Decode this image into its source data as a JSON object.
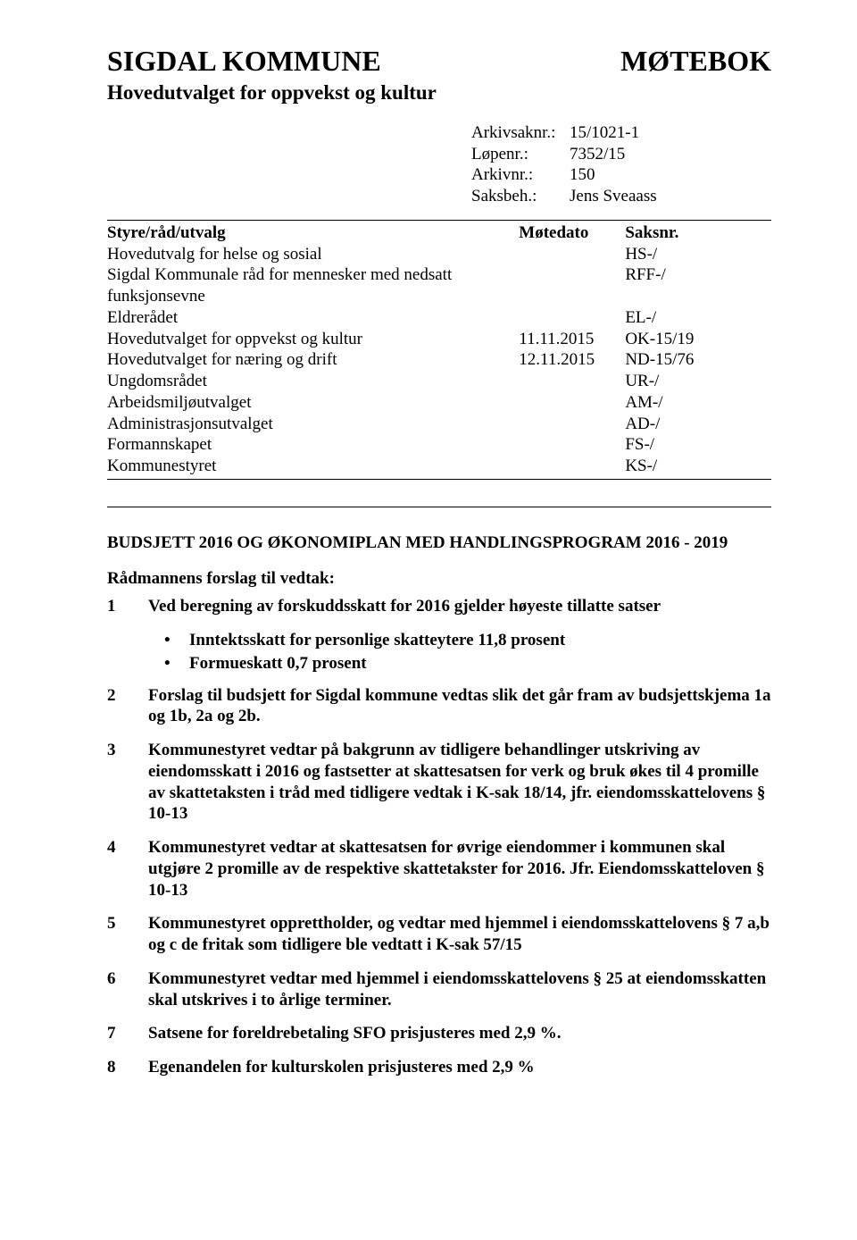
{
  "header": {
    "org": "SIGDAL KOMMUNE",
    "doc_type": "MØTEBOK",
    "committee": "Hovedutvalget for oppvekst og kultur"
  },
  "meta": {
    "rows": [
      {
        "label": "Arkivsaknr.:",
        "value": "15/1021-1"
      },
      {
        "label": "Løpenr.:",
        "value": "7352/15"
      },
      {
        "label": "Arkivnr.:",
        "value": "150"
      },
      {
        "label": "Saksbeh.:",
        "value": "Jens Sveaass"
      }
    ]
  },
  "table": {
    "header": {
      "col1": "Styre/råd/utvalg",
      "col2": "Møtedato",
      "col3": "Saksnr."
    },
    "rows": [
      {
        "name": "Hovedutvalg for helse og sosial",
        "date": "",
        "sak": "HS-/"
      },
      {
        "name": "Sigdal Kommunale råd for mennesker med nedsatt funksjonsevne",
        "date": "",
        "sak": "RFF-/"
      },
      {
        "name": "Eldrerådet",
        "date": "",
        "sak": "EL-/"
      },
      {
        "name": "Hovedutvalget for oppvekst og kultur",
        "date": "11.11.2015",
        "sak": "OK-15/19"
      },
      {
        "name": "Hovedutvalget for næring og drift",
        "date": "12.11.2015",
        "sak": "ND-15/76"
      },
      {
        "name": "Ungdomsrådet",
        "date": "",
        "sak": "UR-/"
      },
      {
        "name": "Arbeidsmiljøutvalget",
        "date": "",
        "sak": "AM-/"
      },
      {
        "name": "Administrasjonsutvalget",
        "date": "",
        "sak": "AD-/"
      },
      {
        "name": "Formannskapet",
        "date": "",
        "sak": "FS-/"
      },
      {
        "name": "Kommunestyret",
        "date": "",
        "sak": "KS-/"
      }
    ]
  },
  "section_title": "BUDSJETT 2016 OG ØKONOMIPLAN MED HANDLINGSPROGRAM 2016 - 2019",
  "forslag_title": "Rådmannens forslag til vedtak:",
  "items": [
    {
      "num": "1",
      "text": "Ved beregning av forskuddsskatt for 2016 gjelder høyeste tillatte satser",
      "bullets": [
        "Inntektsskatt for personlige skatteytere 11,8 prosent",
        "Formueskatt 0,7 prosent"
      ]
    },
    {
      "num": "2",
      "text": "Forslag til budsjett for Sigdal kommune vedtas slik det går fram av budsjettskjema 1a og 1b, 2a og 2b."
    },
    {
      "num": "3",
      "text": "Kommunestyret vedtar på bakgrunn av tidligere behandlinger utskriving av eiendomsskatt i 2016 og fastsetter at skattesatsen for verk og bruk økes til 4 promille av skattetaksten i tråd med tidligere vedtak i K-sak 18/14, jfr. eiendomsskattelovens § 10-13"
    },
    {
      "num": "4",
      "text": "Kommunestyret vedtar at skattesatsen for øvrige eiendommer i kommunen skal utgjøre 2 promille av de respektive skattetakster for 2016. Jfr. Eiendomsskatteloven § 10-13"
    },
    {
      "num": "5",
      "text": "Kommunestyret opprettholder, og vedtar med hjemmel i eiendomsskattelovens § 7 a,b og c de fritak som tidligere ble vedtatt i K-sak 57/15"
    },
    {
      "num": "6",
      "text": "Kommunestyret vedtar med hjemmel i eiendomsskattelovens § 25 at eiendomsskatten skal utskrives i to årlige terminer."
    },
    {
      "num": "7",
      "text": "Satsene for foreldrebetaling SFO prisjusteres med 2,9 %."
    },
    {
      "num": "8",
      "text": "Egenandelen for kulturskolen prisjusteres med 2,9 %"
    }
  ]
}
